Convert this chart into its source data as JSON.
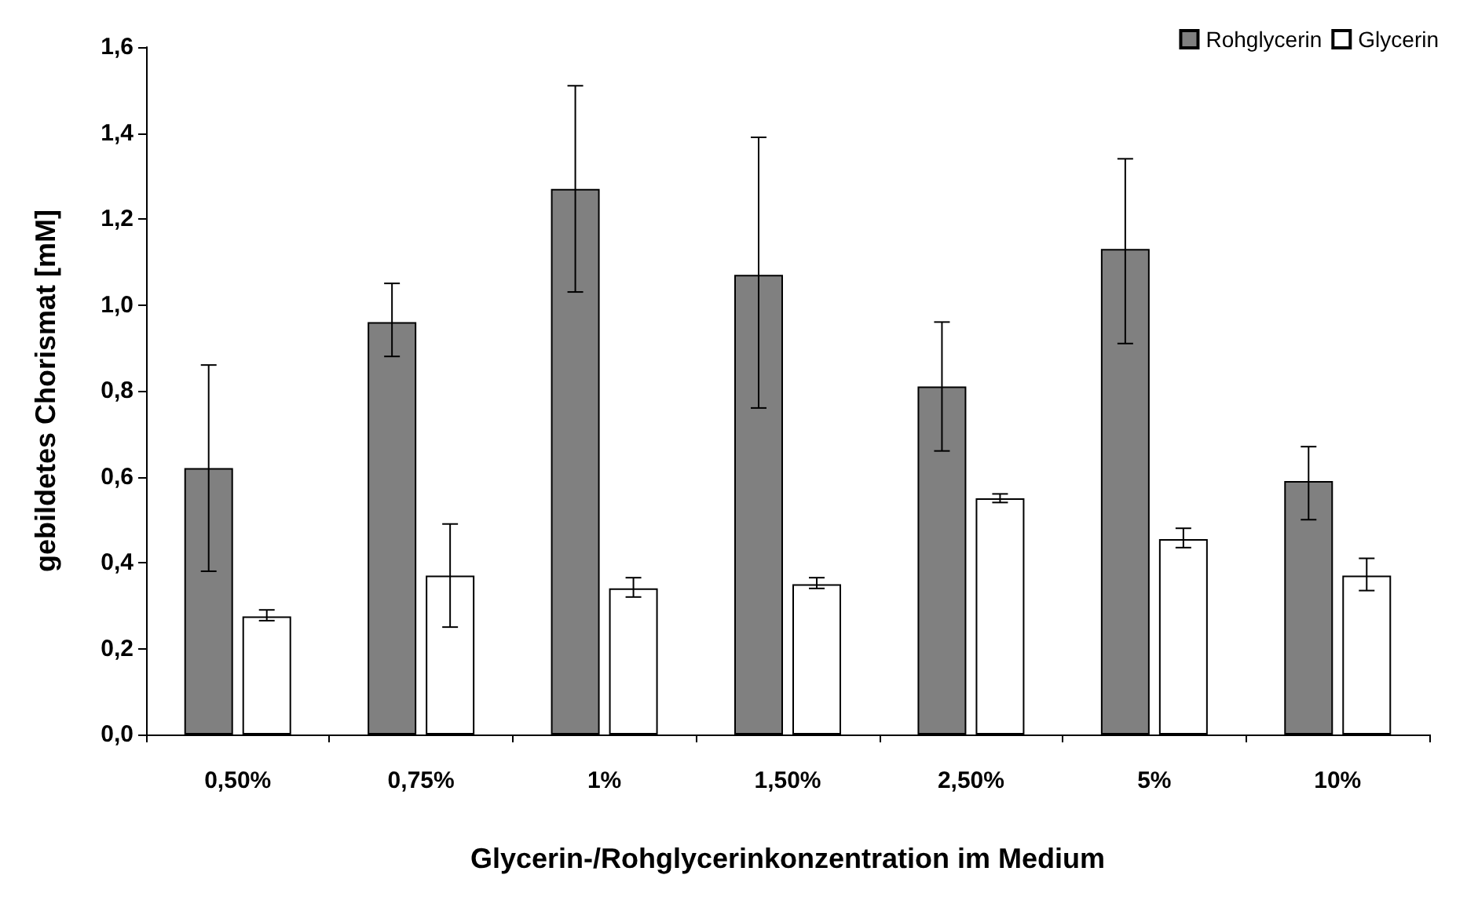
{
  "chart_data": {
    "type": "bar",
    "xlabel": "Glycerin-/Rohglycerinkonzentration im Medium",
    "ylabel": "gebildetes Chorismat [mM]",
    "categories": [
      "0,50%",
      "0,75%",
      "1%",
      "1,50%",
      "2,50%",
      "5%",
      "10%"
    ],
    "series": [
      {
        "name": "Rohglycerin",
        "color": "#808080",
        "values": [
          0.62,
          0.96,
          1.27,
          1.07,
          0.81,
          1.13,
          0.59
        ],
        "errors": [
          [
            0.38,
            0.86
          ],
          [
            0.88,
            1.05
          ],
          [
            1.03,
            1.51
          ],
          [
            0.76,
            1.39
          ],
          [
            0.66,
            0.96
          ],
          [
            0.91,
            1.34
          ],
          [
            0.5,
            0.67
          ]
        ]
      },
      {
        "name": "Glycerin",
        "color": "#ffffff",
        "values": [
          0.275,
          0.37,
          0.34,
          0.35,
          0.55,
          0.455,
          0.37
        ],
        "errors": [
          [
            0.265,
            0.29
          ],
          [
            0.25,
            0.49
          ],
          [
            0.32,
            0.365
          ],
          [
            0.34,
            0.365
          ],
          [
            0.54,
            0.56
          ],
          [
            0.435,
            0.48
          ],
          [
            0.335,
            0.41
          ]
        ]
      }
    ],
    "ylim": [
      0,
      1.6
    ],
    "yticks": [
      {
        "value": 0,
        "label": "0,0"
      },
      {
        "value": 0.2,
        "label": "0,2"
      },
      {
        "value": 0.4,
        "label": "0,4"
      },
      {
        "value": 0.6,
        "label": "0,6"
      },
      {
        "value": 0.8,
        "label": "0,8"
      },
      {
        "value": 1,
        "label": "1,0"
      },
      {
        "value": 1.2,
        "label": "1,2"
      },
      {
        "value": 1.4,
        "label": "1,4"
      },
      {
        "value": 1.6,
        "label": "1,6"
      }
    ],
    "grid": false,
    "legend": "top right"
  }
}
